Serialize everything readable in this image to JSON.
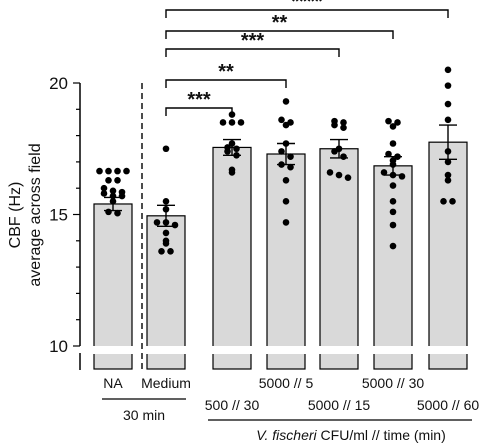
{
  "chart_data": {
    "type": "bar",
    "ylabel_line1": "CBF (Hz)",
    "ylabel_line2": "average across field",
    "ylim": [
      10,
      20.9
    ],
    "axis_break": true,
    "yticks": [
      "10",
      "15",
      "20"
    ],
    "ytick_values": [
      10,
      15,
      20
    ],
    "grid": false,
    "categories": [
      "NA",
      "Medium",
      "500 // 30",
      "5000 // 5",
      "5000 // 15",
      "5000 // 30",
      "5000 // 60"
    ],
    "values": [
      15.4,
      14.95,
      17.55,
      17.3,
      17.5,
      16.85,
      17.75
    ],
    "errors": [
      0.25,
      0.4,
      0.3,
      0.4,
      0.35,
      0.35,
      0.65
    ],
    "points": [
      [
        16.65,
        16.65,
        16.65,
        16.65,
        16.3,
        16.3,
        16.0,
        15.9,
        15.85,
        15.8,
        15.7,
        15.7,
        15.5,
        15.1,
        15.05
      ],
      [
        17.5,
        15.5,
        15.2,
        14.7,
        14.7,
        14.6,
        14.3,
        14.0,
        13.9,
        13.6,
        13.6
      ],
      [
        18.8,
        18.5,
        18.5,
        18.5,
        17.7,
        17.55,
        17.5,
        17.4,
        17.25,
        16.7,
        16.6
      ],
      [
        19.3,
        18.6,
        18.5,
        18.4,
        17.7,
        17.4,
        17.2,
        16.9,
        16.8,
        16.3,
        15.5,
        14.7
      ],
      [
        18.55,
        18.5,
        18.4,
        18.3,
        17.5,
        17.4,
        17.2,
        16.6,
        16.5,
        16.4
      ],
      [
        18.55,
        18.5,
        18.35,
        17.7,
        17.3,
        17.2,
        17.05,
        16.9,
        16.6,
        16.5,
        16.45,
        16.1,
        15.5,
        15.1,
        14.6,
        13.8
      ],
      [
        20.5,
        19.9,
        19.2,
        18.6,
        17.4,
        17.0,
        16.5,
        16.3,
        15.5,
        15.5
      ]
    ],
    "significance": [
      {
        "from": 1,
        "to": 2,
        "label": "***"
      },
      {
        "from": 1,
        "to": 3,
        "label": "**"
      },
      {
        "from": 1,
        "to": 4,
        "label": "***"
      },
      {
        "from": 1,
        "to": 5,
        "label": "**"
      },
      {
        "from": 1,
        "to": 6,
        "label": "****"
      }
    ],
    "group_labels": {
      "thirty_min": "30 min",
      "fischeri_italic": "V. fischeri",
      "fischeri_rest": " CFU/ml // time (min)"
    },
    "colors": {
      "bar_fill": "#d9d9d9",
      "bar_stroke": "#000000",
      "point": "#000000"
    }
  }
}
